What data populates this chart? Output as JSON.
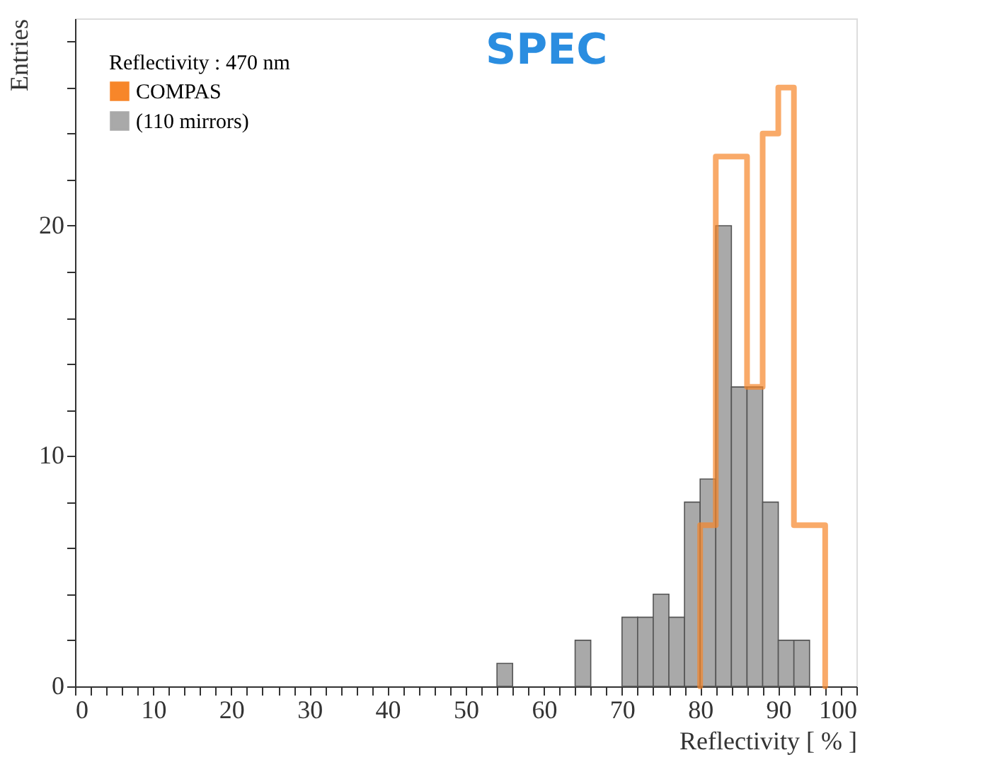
{
  "chart_data": {
    "type": "histogram",
    "legend_title": "Reflectivity : 470 nm",
    "xlabel": "Reflectivity [ % ]",
    "ylabel": "Entries",
    "bins": [
      54,
      56,
      58,
      60,
      62,
      64,
      66,
      68,
      70,
      72,
      74,
      76,
      78,
      80,
      82,
      84,
      86,
      88,
      90,
      92,
      94,
      96
    ],
    "series": [
      {
        "name": "COMPAS",
        "type": "line",
        "color": "#f7862a",
        "x": [
          80,
          80,
          82,
          82,
          86,
          86,
          88,
          88,
          90,
          90,
          92,
          92,
          96,
          96
        ],
        "values": [
          0,
          7,
          7,
          23,
          23,
          13,
          13,
          24,
          24,
          26,
          26,
          7,
          7,
          0
        ]
      },
      {
        "name": "(110 mirrors)",
        "color": "#a9a9a9",
        "values": [
          1,
          0,
          0,
          0,
          0,
          2,
          0,
          0,
          3,
          3,
          4,
          3,
          8,
          9,
          20,
          13,
          13,
          8,
          2,
          2,
          0
        ]
      }
    ],
    "xlim": [
      0,
      100
    ],
    "xticks": [
      0,
      {
        "value": 2,
        "label": null
      },
      {
        "value": 4,
        "label": null
      },
      {
        "value": 6,
        "label": null
      },
      {
        "value": 8,
        "label": null
      },
      10,
      {
        "value": 12,
        "label": null
      },
      {
        "value": 14,
        "label": null
      },
      {
        "value": 16,
        "label": null
      },
      {
        "value": 18,
        "label": null
      },
      20,
      {
        "value": 22,
        "label": null
      },
      {
        "value": 24,
        "label": null
      },
      {
        "value": 26,
        "label": null
      },
      {
        "value": 28,
        "label": null
      },
      30,
      {
        "value": 32,
        "label": null
      },
      {
        "value": 34,
        "label": null
      },
      {
        "value": 36,
        "label": null
      },
      {
        "value": 38,
        "label": null
      },
      40,
      {
        "value": 42,
        "label": null
      },
      {
        "value": 44,
        "label": null
      },
      {
        "value": 46,
        "label": null
      },
      {
        "value": 48,
        "label": null
      },
      50,
      {
        "value": 52,
        "label": null
      },
      {
        "value": 54,
        "label": null
      },
      {
        "value": 56,
        "label": null
      },
      {
        "value": 58,
        "label": null
      },
      60,
      {
        "value": 62,
        "label": null
      },
      {
        "value": 64,
        "label": null
      },
      {
        "value": 66,
        "label": null
      },
      {
        "value": 68,
        "label": null
      },
      70,
      {
        "value": 72,
        "label": null
      },
      {
        "value": 74,
        "label": null
      },
      {
        "value": 76,
        "label": null
      },
      {
        "value": 78,
        "label": null
      },
      80,
      {
        "value": 82,
        "label": null
      },
      {
        "value": 84,
        "label": null
      },
      {
        "value": 86,
        "label": null
      },
      {
        "value": 88,
        "label": null
      },
      90,
      {
        "value": 92,
        "label": null
      },
      {
        "value": 94,
        "label": null
      },
      {
        "value": 96,
        "label": null
      },
      {
        "value": 98,
        "label": null
      },
      100
    ],
    "ylim": [
      0,
      29
    ],
    "yticks": [
      0,
      {
        "value": 2,
        "label": null
      },
      {
        "value": 4,
        "label": null
      },
      {
        "value": 6,
        "label": null
      },
      {
        "value": 8,
        "label": null
      },
      10,
      {
        "value": 12,
        "label": null
      },
      {
        "value": 14,
        "label": null
      },
      {
        "value": 16,
        "label": null
      },
      {
        "value": 18,
        "label": null
      },
      20,
      {
        "value": 22,
        "label": null
      },
      {
        "value": 24,
        "label": null
      },
      {
        "value": 26,
        "label": null
      },
      {
        "value": 28,
        "label": null
      }
    ],
    "annotations": [
      "SPEC"
    ],
    "legend": "top left",
    "grid": false
  }
}
